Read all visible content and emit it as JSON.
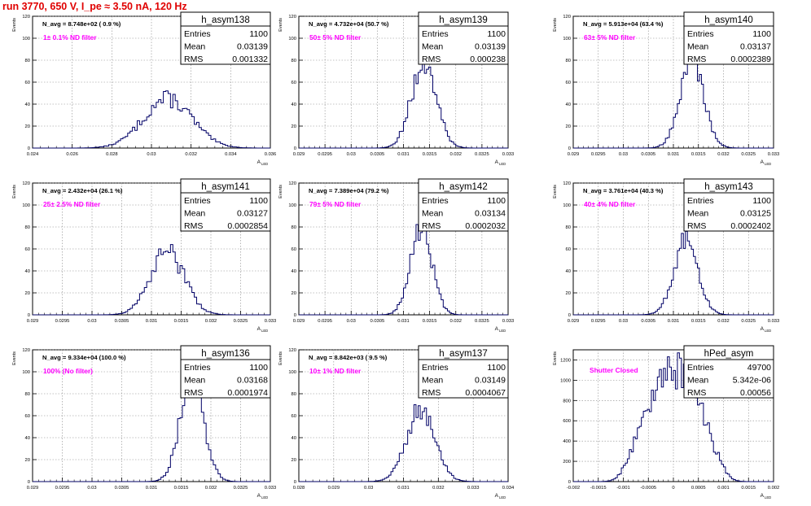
{
  "header": {
    "title": "run 3770,   650 V, I_pe ≈ 3.50 nA, 120 Hz"
  },
  "chart_data": [
    {
      "type": "bar",
      "name": "h_asym138",
      "avg_label": "N_avg = 8.748e+02 ( 0.9 %)",
      "filter_label": "1± 0.1% ND filter",
      "stats": {
        "Entries": "1100",
        "Mean": "0.03139",
        "RMS": "0.001332"
      },
      "ylabel": "Events",
      "xlabel": "A",
      "xlabel_sub": "LED",
      "xlim": [
        0.024,
        0.037
      ],
      "ylim": [
        0,
        120
      ],
      "yticks": [
        "0",
        "20",
        "40",
        "60",
        "80",
        "100",
        "120"
      ],
      "xticks": [
        "0.024",
        "0.026",
        "0.028",
        "0.03",
        "0.032",
        "0.034",
        "0.036"
      ],
      "mean": 0.03139,
      "rms": 0.001332,
      "peak": 52,
      "grid": true
    },
    {
      "type": "bar",
      "name": "h_asym139",
      "avg_label": "N_avg = 4.732e+04 (50.7 %)",
      "filter_label": "50± 5% ND filter",
      "stats": {
        "Entries": "1100",
        "Mean": "0.03139",
        "RMS": "0.000238"
      },
      "ylabel": "Events",
      "xlabel": "A",
      "xlabel_sub": "LED",
      "xlim": [
        0.029,
        0.033
      ],
      "ylim": [
        0,
        120
      ],
      "yticks": [
        "0",
        "20",
        "40",
        "60",
        "80",
        "100",
        "120"
      ],
      "xticks": [
        "0.029",
        "0.0295",
        "0.03",
        "0.0305",
        "0.031",
        "0.0315",
        "0.032",
        "0.0325",
        "0.033"
      ],
      "mean": 0.03139,
      "rms": 0.000238,
      "peak": 86,
      "grid": true
    },
    {
      "type": "bar",
      "name": "h_asym140",
      "avg_label": "N_avg = 5.913e+04 (63.4 %)",
      "filter_label": "63± 5% ND filter",
      "stats": {
        "Entries": "1100",
        "Mean": "0.03137",
        "RMS": "0.0002389"
      },
      "ylabel": "Events",
      "xlabel": "A",
      "xlabel_sub": "LED",
      "xlim": [
        0.029,
        0.033
      ],
      "ylim": [
        0,
        120
      ],
      "yticks": [
        "0",
        "20",
        "40",
        "60",
        "80",
        "100",
        "120"
      ],
      "xticks": [
        "0.029",
        "0.0295",
        "0.03",
        "0.0305",
        "0.031",
        "0.0315",
        "0.032",
        "0.0325",
        "0.033"
      ],
      "mean": 0.03137,
      "rms": 0.0002389,
      "peak": 87,
      "grid": true
    },
    {
      "type": "bar",
      "name": "h_asym141",
      "avg_label": "N_avg = 2.432e+04 (26.1 %)",
      "filter_label": "25± 2.5% ND filter",
      "stats": {
        "Entries": "1100",
        "Mean": "0.03127",
        "RMS": "0.0002854"
      },
      "ylabel": "Events",
      "xlabel": "A",
      "xlabel_sub": "LED",
      "xlim": [
        0.029,
        0.033
      ],
      "ylim": [
        0,
        120
      ],
      "yticks": [
        "0",
        "20",
        "40",
        "60",
        "80",
        "100",
        "120"
      ],
      "xticks": [
        "0.029",
        "0.0295",
        "0.03",
        "0.0305",
        "0.031",
        "0.0315",
        "0.032",
        "0.0325",
        "0.033"
      ],
      "mean": 0.03127,
      "rms": 0.0002854,
      "peak": 64,
      "grid": true
    },
    {
      "type": "bar",
      "name": "h_asym142",
      "avg_label": "N_avg = 7.389e+04 (79.2 %)",
      "filter_label": "79± 5% ND filter",
      "stats": {
        "Entries": "1100",
        "Mean": "0.03134",
        "RMS": "0.0002032"
      },
      "ylabel": "Events",
      "xlabel": "A",
      "xlabel_sub": "LED",
      "xlim": [
        0.029,
        0.033
      ],
      "ylim": [
        0,
        120
      ],
      "yticks": [
        "0",
        "20",
        "40",
        "60",
        "80",
        "100",
        "120"
      ],
      "xticks": [
        "0.029",
        "0.0295",
        "0.03",
        "0.0305",
        "0.031",
        "0.0315",
        "0.032",
        "0.0325",
        "0.033"
      ],
      "mean": 0.03134,
      "rms": 0.0002032,
      "peak": 89,
      "grid": true
    },
    {
      "type": "bar",
      "name": "h_asym143",
      "avg_label": "N_avg = 3.761e+04 (40.3 %)",
      "filter_label": "40± 4% ND filter",
      "stats": {
        "Entries": "1100",
        "Mean": "0.03125",
        "RMS": "0.0002402"
      },
      "ylabel": "Events",
      "xlabel": "A",
      "xlabel_sub": "LED",
      "xlim": [
        0.029,
        0.033
      ],
      "ylim": [
        0,
        120
      ],
      "yticks": [
        "0",
        "20",
        "40",
        "60",
        "80",
        "100",
        "120"
      ],
      "xticks": [
        "0.029",
        "0.0295",
        "0.03",
        "0.0305",
        "0.031",
        "0.0315",
        "0.032",
        "0.0325",
        "0.033"
      ],
      "mean": 0.03125,
      "rms": 0.0002402,
      "peak": 76,
      "grid": true
    },
    {
      "type": "bar",
      "name": "h_asym136",
      "avg_label": "N_avg = 9.334e+04 (100.0 %)",
      "filter_label": "100% (No filter)",
      "stats": {
        "Entries": "1100",
        "Mean": "0.03168",
        "RMS": "0.0001974"
      },
      "ylabel": "Events",
      "xlabel": "A",
      "xlabel_sub": "LED",
      "xlim": [
        0.029,
        0.033
      ],
      "ylim": [
        0,
        120
      ],
      "yticks": [
        "0",
        "20",
        "40",
        "60",
        "80",
        "100",
        "120"
      ],
      "xticks": [
        "0.029",
        "0.0295",
        "0.03",
        "0.0305",
        "0.031",
        "0.0315",
        "0.032",
        "0.0325",
        "0.033"
      ],
      "mean": 0.03168,
      "rms": 0.0001974,
      "peak": 104,
      "grid": true
    },
    {
      "type": "bar",
      "name": "h_asym137",
      "avg_label": "N_avg = 8.842e+03 ( 9.5 %)",
      "filter_label": "10± 1% ND filter",
      "stats": {
        "Entries": "1100",
        "Mean": "0.03149",
        "RMS": "0.0004067"
      },
      "ylabel": "Events",
      "xlabel": "A",
      "xlabel_sub": "LED",
      "xlim": [
        0.028,
        0.034
      ],
      "ylim": [
        0,
        120
      ],
      "yticks": [
        "0",
        "20",
        "40",
        "60",
        "80",
        "100",
        "120"
      ],
      "xticks": [
        "0.028",
        "0.029",
        "0.03",
        "0.031",
        "0.032",
        "0.033",
        "0.034"
      ],
      "mean": 0.03149,
      "rms": 0.0004067,
      "peak": 70,
      "grid": true
    },
    {
      "type": "bar",
      "name": "hPed_asym",
      "avg_label": "",
      "filter_label": "Shutter Closed",
      "stats": {
        "Entries": "49700",
        "Mean": "5.342e-06",
        "RMS": "0.00056"
      },
      "ylabel": "Events",
      "xlabel": "A",
      "xlabel_sub": "LED",
      "xlim": [
        -0.002,
        0.002
      ],
      "ylim": [
        0,
        1300
      ],
      "yticks": [
        "0",
        "200",
        "400",
        "600",
        "800",
        "1000",
        "1200"
      ],
      "xticks": [
        "-0.002",
        "-0.0015",
        "-0.001",
        "-0.0005",
        "0",
        "0.0005",
        "0.001",
        "0.0015",
        "0.002"
      ],
      "mean": 5.342e-06,
      "rms": 0.00056,
      "peak": 1270,
      "shape": "pedestal",
      "grid": true
    }
  ]
}
